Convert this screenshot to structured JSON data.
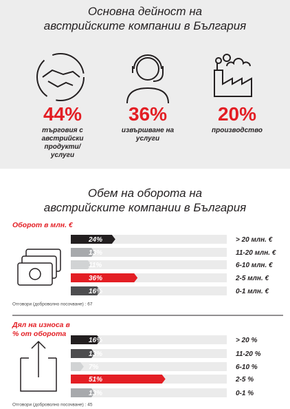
{
  "activity": {
    "title_lines": [
      "Основна дейност на",
      "австрийските компании в България"
    ],
    "items": [
      {
        "value": 44,
        "value_label": "44%",
        "label": "търговия с австрийски продукти/услуги"
      },
      {
        "value": 36,
        "value_label": "36%",
        "label": "извършване на услуги"
      },
      {
        "value": 20,
        "value_label": "20%",
        "label": "производство"
      }
    ]
  },
  "chart_data": [
    {
      "type": "bar",
      "title_lines": [
        "Обем на оборота на",
        "австрийските компании в България"
      ],
      "subtitle": "Оборот в млн. €",
      "categories": [
        "> 20 млн. €",
        "11-20 млн. €",
        "6-10 млн. €",
        "2-5 млн. €",
        "0-1 млн. €"
      ],
      "values": [
        24,
        13,
        11,
        36,
        16
      ],
      "value_labels": [
        "24%",
        "13%",
        "11%",
        "36%",
        "16%"
      ],
      "colors": [
        "#231f20",
        "#a7a9ac",
        "#d1d3d4",
        "#e31e24",
        "#4d4d4f"
      ],
      "note": "Отговори (доброволно посочване) : 67"
    },
    {
      "type": "bar",
      "subtitle": "Дял на износа в % от оборота",
      "categories": [
        "> 20 %",
        "11-20 %",
        "6-10 %",
        "2-5 %",
        "0-1 %"
      ],
      "values": [
        16,
        13,
        7,
        51,
        13
      ],
      "value_labels": [
        "16%",
        "13%",
        "7%",
        "51%",
        "13%"
      ],
      "colors": [
        "#231f20",
        "#4d4d4f",
        "#d1d3d4",
        "#e31e24",
        "#a7a9ac"
      ],
      "note": "Отговори (доброволно посочване) : 45"
    }
  ]
}
